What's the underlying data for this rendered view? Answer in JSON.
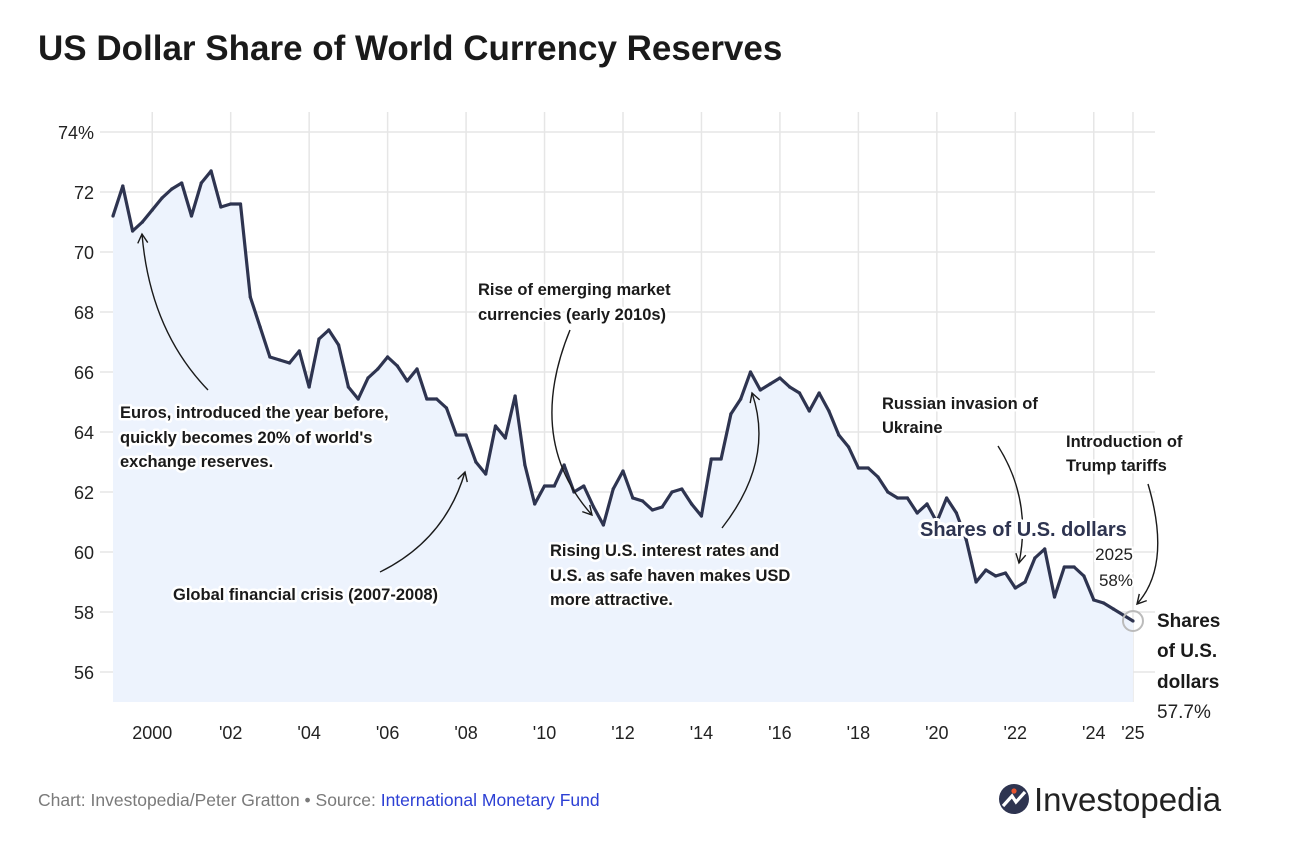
{
  "chart_data": {
    "type": "area",
    "title": "US Dollar Share of World Currency Reserves",
    "xlabel": "",
    "ylabel": "",
    "frequency": "quarterly",
    "xlim": [
      1998.75,
      2025.4
    ],
    "ylim": [
      55,
      74
    ],
    "grid": true,
    "y_ticks": [
      {
        "value": 74,
        "label": "74%"
      },
      {
        "value": 72,
        "label": "72"
      },
      {
        "value": 70,
        "label": "70"
      },
      {
        "value": 68,
        "label": "68"
      },
      {
        "value": 66,
        "label": "66"
      },
      {
        "value": 64,
        "label": "64"
      },
      {
        "value": 62,
        "label": "62"
      },
      {
        "value": 60,
        "label": "60"
      },
      {
        "value": 58,
        "label": "58"
      },
      {
        "value": 56,
        "label": "56"
      }
    ],
    "x_ticks": [
      {
        "value": 2000,
        "label": "2000"
      },
      {
        "value": 2002,
        "label": "'02"
      },
      {
        "value": 2004,
        "label": "'04"
      },
      {
        "value": 2006,
        "label": "'06"
      },
      {
        "value": 2008,
        "label": "'08"
      },
      {
        "value": 2010,
        "label": "'10"
      },
      {
        "value": 2012,
        "label": "'12"
      },
      {
        "value": 2014,
        "label": "'14"
      },
      {
        "value": 2016,
        "label": "'16"
      },
      {
        "value": 2018,
        "label": "'18"
      },
      {
        "value": 2020,
        "label": "'20"
      },
      {
        "value": 2022,
        "label": "'22"
      },
      {
        "value": 2024,
        "label": "'24"
      },
      {
        "value": 2025,
        "label": "'25"
      }
    ],
    "series": [
      {
        "name": "Shares of U.S. dollars",
        "color": "#2e3450",
        "fill": "#edf3fd",
        "start_year": 1999,
        "values": [
          71.2,
          72.2,
          70.7,
          71.0,
          71.4,
          71.8,
          72.1,
          72.3,
          71.2,
          72.3,
          72.7,
          71.5,
          71.6,
          71.6,
          68.5,
          67.5,
          66.5,
          66.4,
          66.3,
          66.7,
          65.5,
          67.1,
          67.4,
          66.9,
          65.5,
          65.1,
          65.8,
          66.1,
          66.5,
          66.2,
          65.7,
          66.1,
          65.1,
          65.1,
          64.8,
          63.9,
          63.9,
          63.0,
          62.6,
          64.2,
          63.8,
          65.2,
          62.9,
          61.6,
          62.2,
          62.2,
          62.9,
          62.0,
          62.2,
          61.5,
          60.9,
          62.1,
          62.7,
          61.8,
          61.7,
          61.4,
          61.5,
          62.0,
          62.1,
          61.6,
          61.2,
          63.1,
          63.1,
          64.6,
          65.1,
          66.0,
          65.4,
          65.6,
          65.8,
          65.5,
          65.3,
          64.7,
          65.3,
          64.7,
          63.9,
          63.5,
          62.8,
          62.8,
          62.5,
          62.0,
          61.8,
          61.8,
          61.3,
          61.6,
          61.0,
          61.8,
          61.3,
          60.4,
          59.0,
          59.4,
          59.2,
          59.3,
          58.8,
          59.0,
          59.8,
          60.1,
          58.5,
          59.5,
          59.5,
          59.2,
          58.4,
          58.3,
          58.1,
          57.9,
          57.7
        ]
      }
    ],
    "series_label": "Shares of U.S. dollars",
    "callout": {
      "year": "2025",
      "value": "58%"
    },
    "end_label": {
      "lines": [
        "Shares",
        "of U.S.",
        "dollars"
      ],
      "value": "57.7%"
    },
    "annotations": [
      {
        "id": "euro",
        "lines": [
          "Euros, introduced the year before,",
          "quickly becomes 20% of world's",
          "exchange reserves."
        ]
      },
      {
        "id": "gfc",
        "lines": [
          "Global financial crisis (2007-2008)"
        ]
      },
      {
        "id": "emerging",
        "lines": [
          "Rise of emerging market",
          "currencies (early 2010s)"
        ]
      },
      {
        "id": "rates",
        "lines": [
          "Rising U.S. interest rates and",
          "U.S. as safe haven makes USD",
          "more attractive."
        ]
      },
      {
        "id": "russia",
        "lines": [
          "Russian invasion of",
          "Ukraine"
        ]
      },
      {
        "id": "tariffs",
        "lines": [
          "Introduction of",
          "Trump tariffs"
        ]
      }
    ]
  },
  "footer": {
    "credit": "Chart: Investopedia/Peter Gratton • Source: ",
    "source_link": "International Monetary Fund",
    "logo": "Investopedia",
    "logo_color": "#2e3450",
    "logo_accent": "#e8542f"
  }
}
